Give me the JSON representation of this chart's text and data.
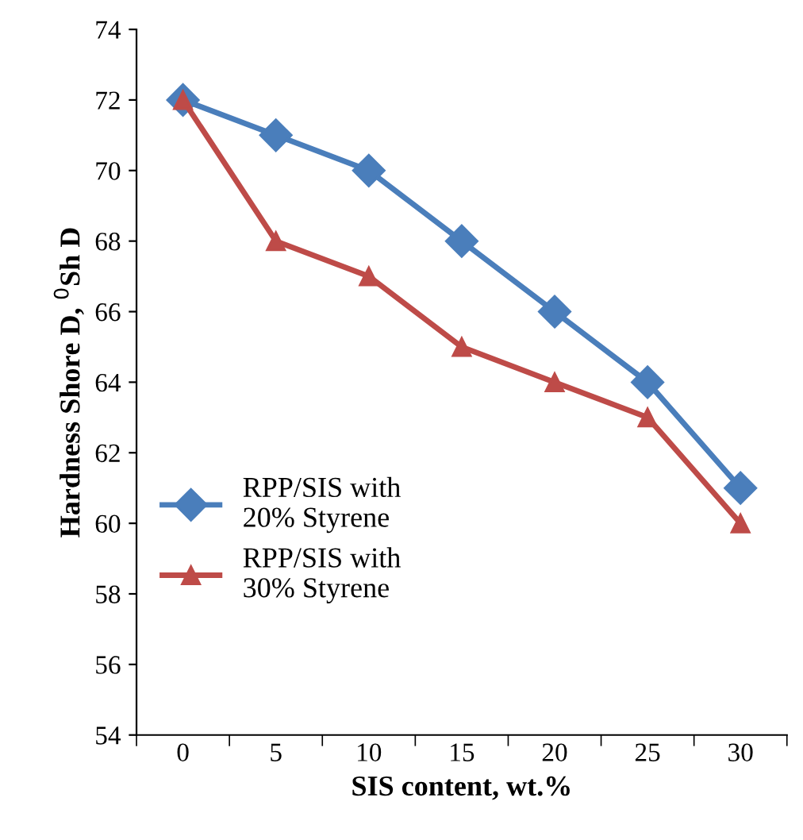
{
  "chart_data": {
    "type": "line",
    "xlabel": "SIS content, wt.%",
    "ylabel": "Hardness Shore D, $^{0}$Sh D",
    "categories": [
      "0",
      "5",
      "10",
      "15",
      "20",
      "25",
      "30"
    ],
    "series": [
      {
        "name": "RPP/SIS with\n20% Styrene",
        "color": "#4a7ebb",
        "marker": "diamond",
        "values": [
          72,
          71,
          70,
          68,
          66,
          64,
          61
        ]
      },
      {
        "name": "RPP/SIS with\n30% Styrene",
        "color": "#be4b48",
        "marker": "triangle",
        "values": [
          72,
          68,
          67,
          65,
          64,
          63,
          60
        ]
      }
    ],
    "ylim": [
      54,
      74
    ],
    "yticks": [
      54,
      56,
      58,
      60,
      62,
      64,
      66,
      68,
      70,
      72,
      74
    ],
    "grid": false,
    "legend": "bottom left",
    "line_style": "solid"
  }
}
